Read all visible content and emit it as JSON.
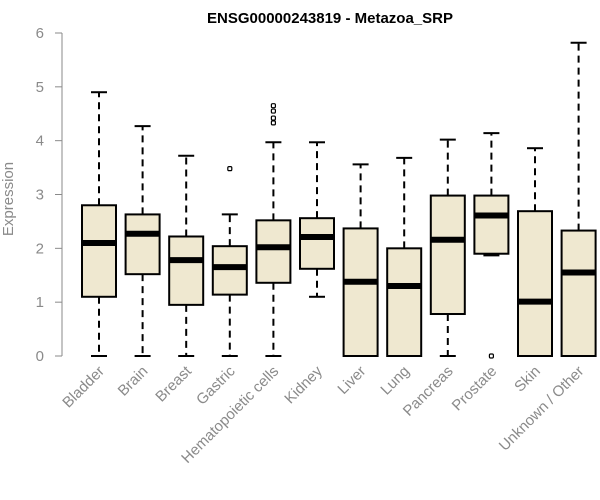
{
  "chart_data": {
    "type": "box",
    "title": "ENSG00000243819 - Metazoa_SRP",
    "xlabel": "",
    "ylabel": "Expression",
    "ylim": [
      0,
      6
    ],
    "yticks": [
      0,
      1,
      2,
      3,
      4,
      5,
      6
    ],
    "box_fill": "#efe8d0",
    "categories": [
      "Bladder",
      "Brain",
      "Breast",
      "Gastric",
      "Hematopoietic cells",
      "Kidney",
      "Liver",
      "Lung",
      "Pancreas",
      "Prostate",
      "Skin",
      "Unknown / Other"
    ],
    "boxes": [
      {
        "category": "Bladder",
        "min": 0,
        "q1": 1.1,
        "median": 2.1,
        "q3": 2.8,
        "max": 4.9,
        "outliers": []
      },
      {
        "category": "Brain",
        "min": 0,
        "q1": 1.52,
        "median": 2.27,
        "q3": 2.63,
        "max": 4.27,
        "outliers": []
      },
      {
        "category": "Breast",
        "min": 0,
        "q1": 0.95,
        "median": 1.78,
        "q3": 2.22,
        "max": 3.72,
        "outliers": []
      },
      {
        "category": "Gastric",
        "min": 0,
        "q1": 1.14,
        "median": 1.65,
        "q3": 2.04,
        "max": 2.63,
        "outliers": [
          3.48
        ]
      },
      {
        "category": "Hematopoietic cells",
        "min": 0,
        "q1": 1.36,
        "median": 2.02,
        "q3": 2.52,
        "max": 3.97,
        "outliers": [
          4.33,
          4.42,
          4.55,
          4.65
        ]
      },
      {
        "category": "Kidney",
        "min": 1.1,
        "q1": 1.62,
        "median": 2.21,
        "q3": 2.56,
        "max": 3.97,
        "outliers": []
      },
      {
        "category": "Liver",
        "min": 0,
        "q1": 0,
        "median": 1.38,
        "q3": 2.37,
        "max": 3.56,
        "outliers": []
      },
      {
        "category": "Lung",
        "min": 0,
        "q1": 0,
        "median": 1.3,
        "q3": 2.0,
        "max": 3.68,
        "outliers": []
      },
      {
        "category": "Pancreas",
        "min": 0,
        "q1": 0.78,
        "median": 2.16,
        "q3": 2.98,
        "max": 4.02,
        "outliers": []
      },
      {
        "category": "Prostate",
        "min": 1.87,
        "q1": 1.9,
        "median": 2.61,
        "q3": 2.98,
        "max": 4.14,
        "outliers": [
          0
        ]
      },
      {
        "category": "Skin",
        "min": 0,
        "q1": 0,
        "median": 1.01,
        "q3": 2.69,
        "max": 3.86,
        "outliers": []
      },
      {
        "category": "Unknown / Other",
        "min": 0,
        "q1": 0,
        "median": 1.55,
        "q3": 2.33,
        "max": 5.82,
        "outliers": []
      }
    ]
  }
}
